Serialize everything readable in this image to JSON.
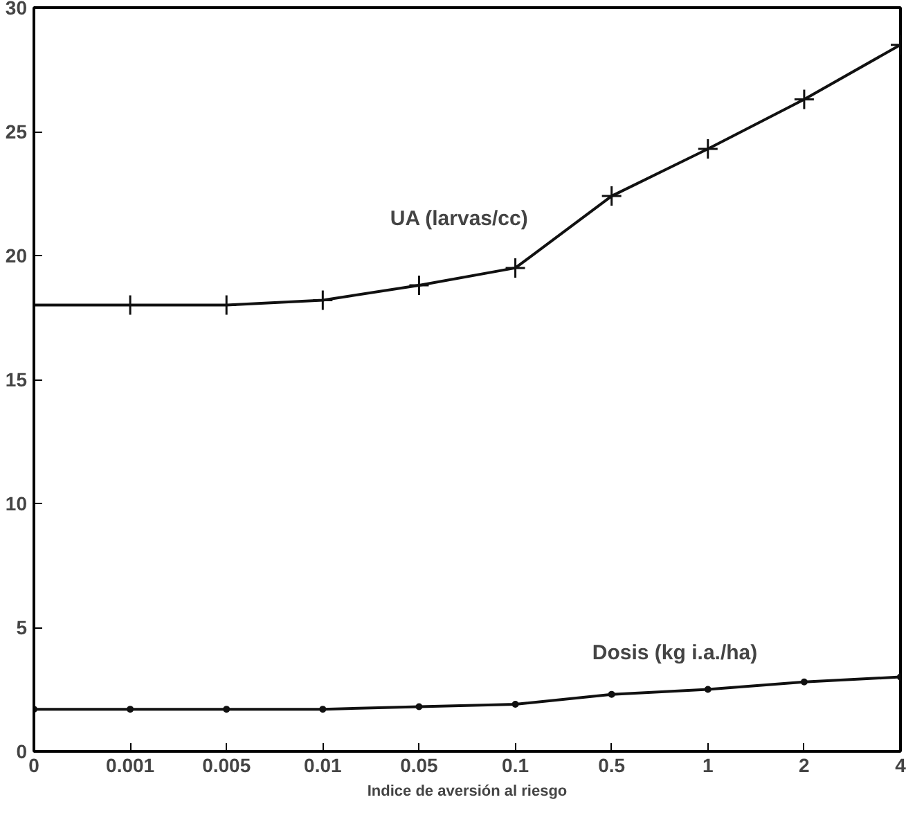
{
  "chart_data": {
    "type": "line",
    "xlabel": "Indice de aversión al riesgo",
    "categories": [
      "0",
      "0.001",
      "0.005",
      "0.01",
      "0.05",
      "0.1",
      "0.5",
      "1",
      "2",
      "4"
    ],
    "series": [
      {
        "name": "UA (larvas/cc)",
        "color": "#111111",
        "marker": "cross",
        "values": [
          18,
          18,
          18,
          18.2,
          18.8,
          19.5,
          22.4,
          24.3,
          26.3,
          28.5
        ]
      },
      {
        "name": "Dosis (kg i.a./ha)",
        "color": "#111111",
        "marker": "circle",
        "values": [
          1.7,
          1.7,
          1.7,
          1.7,
          1.8,
          1.9,
          2.3,
          2.5,
          2.8,
          3.0
        ]
      }
    ],
    "ylim": [
      0,
      30
    ],
    "yticks": [
      0,
      5,
      10,
      15,
      20,
      25,
      30
    ],
    "grid": false,
    "line_style": "solid"
  }
}
